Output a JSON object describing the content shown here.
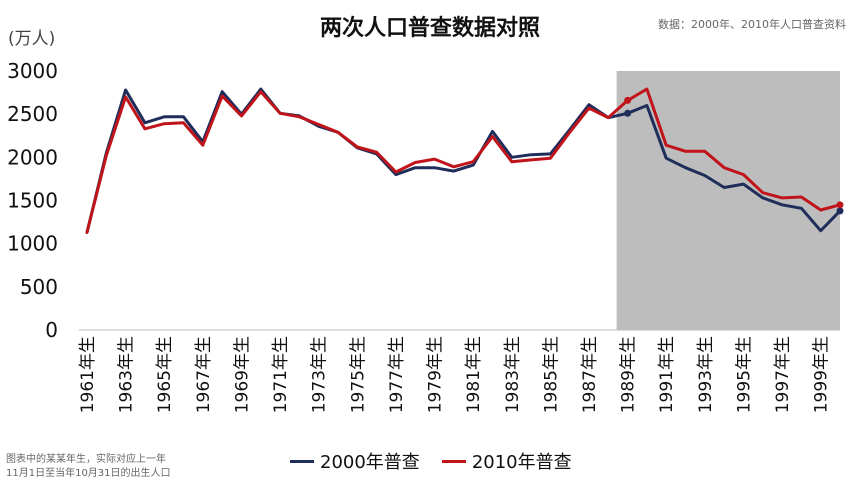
{
  "chart_data": {
    "type": "line",
    "title": "两次人口普查数据对照",
    "source": "数据：2000年、2010年人口普查资料",
    "unit": "(万人)",
    "footnote": [
      "图表中的某某年生，实际对应上一年",
      "11月1日至当年10月31日的出生人口"
    ],
    "ylim": [
      0,
      3000
    ],
    "yticks": [
      0,
      500,
      1000,
      1500,
      2000,
      2500,
      3000
    ],
    "x": [
      1961,
      1962,
      1963,
      1964,
      1965,
      1966,
      1967,
      1968,
      1969,
      1970,
      1971,
      1972,
      1973,
      1974,
      1975,
      1976,
      1977,
      1978,
      1979,
      1980,
      1981,
      1982,
      1983,
      1984,
      1985,
      1986,
      1987,
      1988,
      1989,
      1990,
      1991,
      1992,
      1993,
      1994,
      1995,
      1996,
      1997,
      1998,
      1999,
      2000
    ],
    "xtick_labels": [
      "1961年生",
      "1963年生",
      "1965年生",
      "1967年生",
      "1969年生",
      "1971年生",
      "1973年生",
      "1975年生",
      "1977年生",
      "1979年生",
      "1981年生",
      "1983年生",
      "1985年生",
      "1987年生",
      "1989年生",
      "1991年生",
      "1993年生",
      "1995年生",
      "1997年生",
      "1999年生"
    ],
    "shaded_range": [
      1989,
      2000
    ],
    "shaded_color": "#bdbdbd",
    "series": [
      {
        "name": "2000年普查",
        "color": "#1f2d5a",
        "values": [
          1130,
          2050,
          2780,
          2400,
          2470,
          2470,
          2180,
          2760,
          2500,
          2790,
          2510,
          2480,
          2360,
          2290,
          2110,
          2040,
          1800,
          1880,
          1880,
          1840,
          1910,
          2300,
          2000,
          2030,
          2040,
          2320,
          2610,
          2460,
          2510,
          2600,
          1990,
          1880,
          1790,
          1650,
          1690,
          1530,
          1450,
          1410,
          1150,
          1380
        ]
      },
      {
        "name": "2010年普查",
        "color": "#c0141b",
        "values": [
          1130,
          2020,
          2700,
          2330,
          2390,
          2400,
          2140,
          2710,
          2480,
          2760,
          2510,
          2470,
          2380,
          2290,
          2120,
          2060,
          1830,
          1940,
          1980,
          1890,
          1950,
          2240,
          1950,
          1970,
          1990,
          2290,
          2570,
          2460,
          2660,
          2790,
          2140,
          2070,
          2070,
          1880,
          1800,
          1590,
          1530,
          1540,
          1390,
          1450
        ]
      }
    ],
    "legend_position": "bottom-center",
    "grid": false
  }
}
